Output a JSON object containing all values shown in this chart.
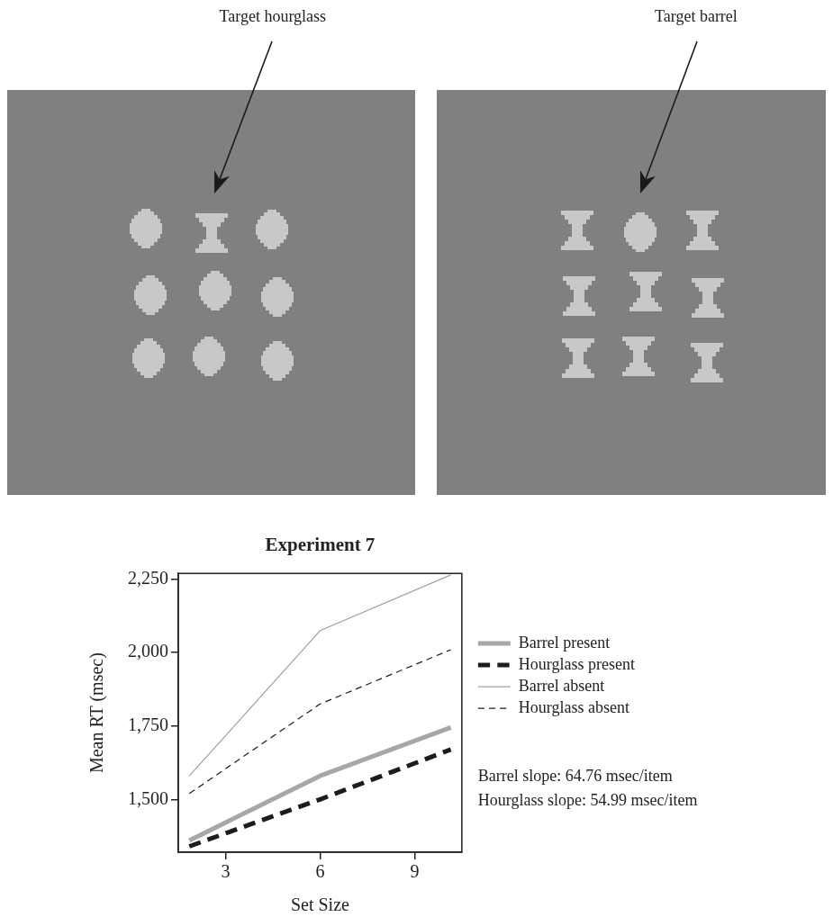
{
  "chart_data": {
    "type": "line",
    "title": "Experiment 7",
    "xlabel": "Set Size",
    "ylabel": "Mean RT (msec)",
    "x": [
      1.85,
      6,
      10.15
    ],
    "series": [
      {
        "name": "Barrel present",
        "color": "#a7a7a9",
        "values": [
          1360,
          1580,
          1745
        ],
        "line_style": "solid"
      },
      {
        "name": "Hourglass present",
        "color": "#1c1c1c",
        "values": [
          1340,
          1500,
          1670
        ],
        "line_style": "dashed"
      },
      {
        "name": "Barrel absent",
        "color": "#a0a0a2",
        "values": [
          1580,
          2075,
          2265
        ],
        "line_style": "solid"
      },
      {
        "name": "Hourglass absent",
        "color": "#1c1c1c",
        "values": [
          1520,
          1825,
          2010
        ],
        "line_style": "dashed"
      }
    ],
    "xlim": [
      1.5,
      10.5
    ],
    "xticks": [
      3,
      6,
      9
    ],
    "ylim": [
      1320,
      2270
    ],
    "yticks": [
      {
        "value": 1500,
        "label": "1,500"
      },
      {
        "value": 1750,
        "label": "1,750"
      },
      {
        "value": 2000,
        "label": "2,000"
      },
      {
        "value": 2250,
        "label": "2,250"
      }
    ],
    "legend": "right",
    "annotations": [
      "Target hourglass",
      "Target barrel",
      "Barrel slope: 64.76 msec/item",
      "Hourglass slope: 54.99 msec/item"
    ]
  }
}
